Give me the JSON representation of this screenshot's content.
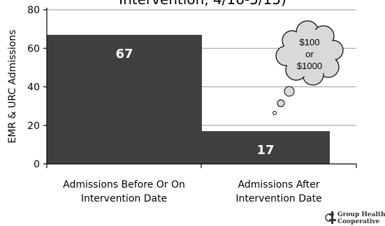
{
  "chart_data": {
    "type": "bar",
    "title": "Intervention, 4/16-5/15)",
    "ylabel": "EMR & URC Admissions",
    "xlabel": "",
    "ylim": [
      0,
      80
    ],
    "yticks": [
      0,
      20,
      40,
      60,
      80
    ],
    "grid": true,
    "categories": [
      [
        "Admissions Before Or On",
        "Intervention Date"
      ],
      [
        "Admissions After",
        "Intervention Date"
      ]
    ],
    "values": [
      67,
      17
    ],
    "data_labels": [
      "67",
      "17"
    ],
    "bar_color": "#404040"
  },
  "annotation": {
    "lines": [
      "$100",
      "or",
      "$1000"
    ],
    "fill": "#d9d9d9"
  },
  "logo": {
    "lines": [
      "Group Health",
      "Cooperative"
    ]
  }
}
